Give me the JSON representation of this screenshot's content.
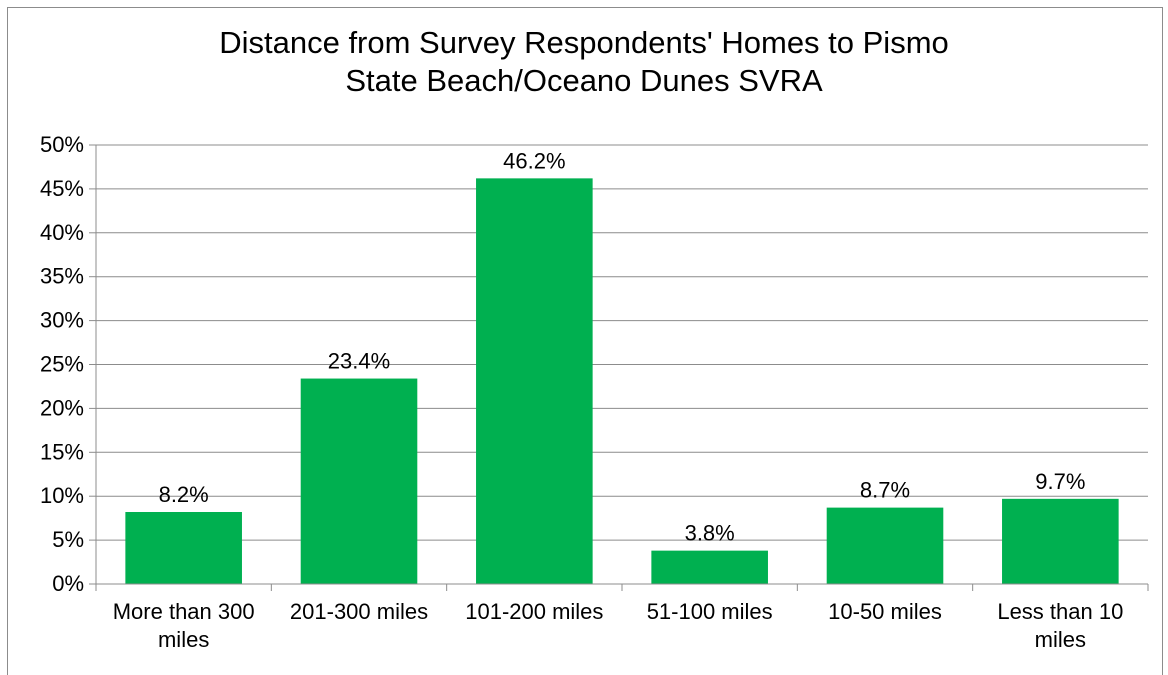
{
  "chart_data": {
    "type": "bar",
    "title_lines": [
      "Distance from Survey Respondents' Homes to Pismo",
      "State Beach/Oceano Dunes SVRA"
    ],
    "categories": [
      [
        "More than 300",
        "miles"
      ],
      [
        "201-300 miles"
      ],
      [
        "101-200 miles"
      ],
      [
        "51-100 miles"
      ],
      [
        "10-50 miles"
      ],
      [
        "Less than 10",
        "miles"
      ]
    ],
    "values": [
      8.2,
      23.4,
      46.2,
      3.8,
      8.7,
      9.7
    ],
    "data_labels": [
      "8.2%",
      "23.4%",
      "46.2%",
      "3.8%",
      "8.7%",
      "9.7%"
    ],
    "ylim": [
      0,
      50
    ],
    "yticks": [
      0,
      5,
      10,
      15,
      20,
      25,
      30,
      35,
      40,
      45,
      50
    ],
    "ytick_labels": [
      "0%",
      "5%",
      "10%",
      "15%",
      "20%",
      "25%",
      "30%",
      "35%",
      "40%",
      "45%",
      "50%"
    ],
    "grid": true,
    "legend": "none",
    "colors": {
      "bar": "#00b050",
      "grid": "#8c8c8c",
      "axis": "#8c8c8c"
    }
  }
}
